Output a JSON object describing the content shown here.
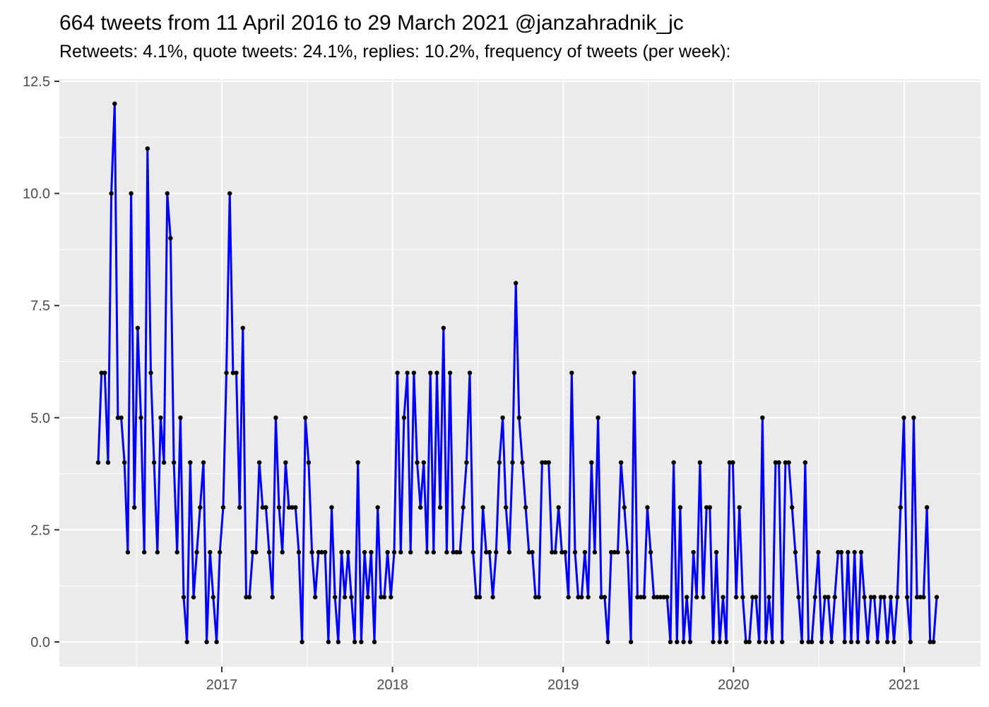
{
  "header": {
    "title": "664 tweets from 11 April 2016 to 29 March 2021 @janzahradnik_jc",
    "subtitle": "Retweets: 4.1%, quote tweets: 24.1%, replies: 10.2%, frequency of tweets (per week):"
  },
  "chart_data": {
    "type": "line",
    "title": "664 tweets from 11 April 2016 to 29 March 2021 @janzahradnik_jc",
    "subtitle": "Retweets: 4.1%, quote tweets: 24.1%, replies: 10.2%, frequency of tweets (per week):",
    "xlabel": "",
    "ylabel": "",
    "legend": false,
    "grid": true,
    "x_range_label": {
      "start": "11 April 2016",
      "end": "29 March 2021"
    },
    "x_ticks": {
      "labels": [
        "2017",
        "2018",
        "2019",
        "2020",
        "2021"
      ],
      "week_positions": [
        38.6,
        90.5,
        142.4,
        194.2,
        246.1
      ]
    },
    "y_ticks": {
      "labels": [
        "0.0",
        "2.5",
        "5.0",
        "7.5",
        "10.0",
        "12.5"
      ],
      "values": [
        0,
        2.5,
        5,
        7.5,
        10,
        12.5
      ],
      "minor_values": [
        1.25,
        3.75,
        6.25,
        8.75,
        11.25
      ]
    },
    "ylim": [
      -0.55,
      12.55
    ],
    "colors": {
      "line": "#0000FF",
      "marker": "#000000",
      "panel_bg": "#EBEBEB",
      "gridline": "#FFFFFF",
      "axis_text": "#4D4D4D",
      "tick_mark": "#333333",
      "title_text": "#000000"
    },
    "series": [
      {
        "name": "tweets per week",
        "values": [
          4,
          6,
          6,
          4,
          10,
          12,
          5,
          5,
          4,
          2,
          10,
          3,
          7,
          5,
          2,
          11,
          6,
          4,
          2,
          5,
          4,
          10,
          9,
          4,
          2,
          5,
          1,
          0,
          4,
          1,
          2,
          3,
          4,
          0,
          2,
          1,
          0,
          2,
          3,
          6,
          10,
          6,
          6,
          3,
          7,
          1,
          1,
          2,
          2,
          4,
          3,
          3,
          2,
          1,
          5,
          3,
          2,
          4,
          3,
          3,
          3,
          2,
          0,
          5,
          4,
          2,
          1,
          2,
          2,
          2,
          0,
          3,
          1,
          0,
          2,
          1,
          2,
          1,
          0,
          4,
          0,
          2,
          1,
          2,
          0,
          3,
          1,
          1,
          2,
          1,
          2,
          6,
          2,
          5,
          6,
          2,
          6,
          4,
          3,
          4,
          2,
          6,
          2,
          6,
          3,
          7,
          2,
          6,
          2,
          2,
          2,
          3,
          4,
          6,
          2,
          1,
          1,
          3,
          2,
          2,
          1,
          2,
          4,
          5,
          3,
          2,
          4,
          8,
          5,
          4,
          3,
          2,
          2,
          1,
          1,
          4,
          4,
          4,
          2,
          2,
          3,
          2,
          2,
          1,
          6,
          2,
          1,
          1,
          2,
          1,
          4,
          2,
          5,
          1,
          1,
          0,
          2,
          2,
          2,
          4,
          3,
          2,
          0,
          6,
          1,
          1,
          1,
          3,
          2,
          1,
          1,
          1,
          1,
          1,
          0,
          4,
          0,
          3,
          0,
          1,
          0,
          2,
          1,
          4,
          1,
          3,
          3,
          0,
          2,
          0,
          1,
          0,
          4,
          4,
          1,
          3,
          1,
          0,
          0,
          1,
          1,
          0,
          5,
          0,
          1,
          0,
          4,
          4,
          0,
          4,
          4,
          3,
          2,
          1,
          0,
          4,
          0,
          0,
          1,
          2,
          0,
          1,
          1,
          0,
          1,
          2,
          2,
          0,
          2,
          0,
          2,
          0,
          2,
          1,
          0,
          1,
          1,
          0,
          1,
          1,
          0,
          1,
          0,
          1,
          3,
          5,
          1,
          0,
          5,
          1,
          1,
          1,
          3,
          0,
          0,
          1
        ]
      }
    ]
  }
}
